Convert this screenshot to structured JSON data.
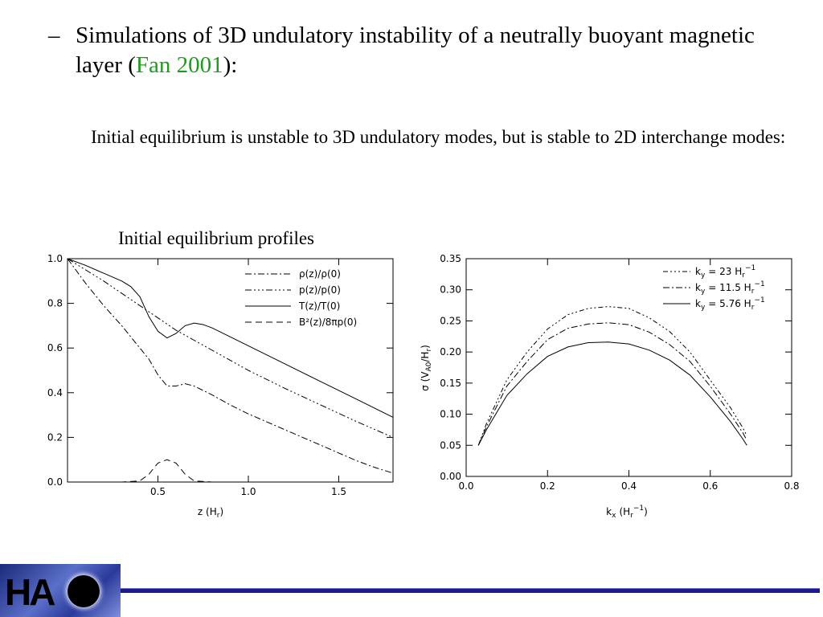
{
  "bullet": {
    "dash": "–",
    "text_before": "Simulations of 3D undulatory instability of a neutrally buoyant magnetic layer (",
    "citation": "Fan 2001",
    "text_after": "):"
  },
  "subtext": "Initial equilibrium is unstable to 3D undulatory modes, but is stable to 2D interchange modes:",
  "profiles_title": "Initial equilibrium profiles",
  "logo_text": "HA",
  "chart_data": [
    {
      "type": "line",
      "xlabel_main": "z",
      "xlabel_unit": "(H",
      "xlabel_sub": "r",
      "xlabel_close": ")",
      "xlim": [
        0,
        1.8
      ],
      "ylim": [
        0,
        1.0
      ],
      "x_ticks": [
        0.5,
        1.0,
        1.5
      ],
      "x_tick_labels": [
        "0.5",
        "1.0",
        "1.5"
      ],
      "y_ticks": [
        0,
        0.2,
        0.4,
        0.6,
        0.8,
        1.0
      ],
      "y_tick_labels": [
        "0.0",
        "0.2",
        "0.4",
        "0.6",
        "0.8",
        "1.0"
      ],
      "legend_position": "top-right",
      "legend_labels": [
        "ρ(z)/ρ(0)",
        "p(z)/p(0)",
        "T(z)/T(0)",
        "B²(z)/8πp(0)"
      ],
      "series": [
        {
          "dash": "8,3,2,3",
          "x": [
            0,
            0.1,
            0.2,
            0.3,
            0.4,
            0.45,
            0.5,
            0.55,
            0.6,
            0.65,
            0.7,
            0.8,
            0.9,
            1.0,
            1.1,
            1.2,
            1.3,
            1.4,
            1.5,
            1.6,
            1.7,
            1.8
          ],
          "y": [
            1.0,
            0.89,
            0.79,
            0.7,
            0.6,
            0.55,
            0.48,
            0.43,
            0.43,
            0.44,
            0.43,
            0.39,
            0.345,
            0.305,
            0.27,
            0.235,
            0.2,
            0.165,
            0.13,
            0.095,
            0.065,
            0.04
          ]
        },
        {
          "dash": "8,3,2,3,2,3,2,3",
          "x": [
            0,
            0.2,
            0.4,
            0.6,
            0.7,
            0.8,
            1.0,
            1.2,
            1.4,
            1.6,
            1.8
          ],
          "y": [
            1.0,
            0.9,
            0.79,
            0.68,
            0.635,
            0.59,
            0.5,
            0.42,
            0.345,
            0.27,
            0.2
          ]
        },
        {
          "dash": "none",
          "x": [
            0,
            0.1,
            0.2,
            0.3,
            0.35,
            0.4,
            0.45,
            0.5,
            0.55,
            0.6,
            0.65,
            0.7,
            0.75,
            0.8,
            1.0,
            1.2,
            1.4,
            1.6,
            1.8
          ],
          "y": [
            1.0,
            0.97,
            0.935,
            0.9,
            0.875,
            0.83,
            0.74,
            0.675,
            0.645,
            0.665,
            0.7,
            0.712,
            0.705,
            0.69,
            0.61,
            0.53,
            0.45,
            0.37,
            0.29
          ]
        },
        {
          "dash": "8,5",
          "x": [
            0,
            0.3,
            0.4,
            0.45,
            0.5,
            0.55,
            0.6,
            0.65,
            0.7,
            0.8,
            1.8
          ],
          "y": [
            0,
            0,
            0.005,
            0.035,
            0.085,
            0.1,
            0.085,
            0.035,
            0.005,
            0,
            0
          ]
        }
      ]
    },
    {
      "type": "line",
      "ylabel_main": "σ",
      "ylabel_unit": "(V",
      "ylabel_sub": "A0",
      "ylabel_slash": "/H",
      "ylabel_sub2": "r",
      "ylabel_close": ")",
      "xlabel_main": "k",
      "xlabel_sub": "x",
      "xlabel_unit": "(H",
      "xlabel_sub2": "r",
      "xlabel_sup": "−1",
      "xlabel_close": ")",
      "xlim": [
        0,
        0.8
      ],
      "ylim": [
        0,
        0.35
      ],
      "x_ticks": [
        0,
        0.2,
        0.4,
        0.6,
        0.8
      ],
      "x_tick_labels": [
        "0.0",
        "0.2",
        "0.4",
        "0.6",
        "0.8"
      ],
      "y_ticks": [
        0,
        0.05,
        0.1,
        0.15,
        0.2,
        0.25,
        0.3,
        0.35
      ],
      "y_tick_labels": [
        "0.00",
        "0.05",
        "0.10",
        "0.15",
        "0.20",
        "0.25",
        "0.30",
        "0.35"
      ],
      "legend_position": "top-right",
      "legend": [
        {
          "k": "k",
          "sub": "y",
          "eq": "= 23 H",
          "sub2": "r",
          "sup": "−1"
        },
        {
          "k": "k",
          "sub": "y",
          "eq": "= 11.5 H",
          "sub2": "r",
          "sup": "−1"
        },
        {
          "k": "k",
          "sub": "y",
          "eq": "= 5.76 H",
          "sub2": "r",
          "sup": "−1"
        }
      ],
      "series": [
        {
          "dash": "6,3,2,3,2,3,2,3",
          "x": [
            0.03,
            0.05,
            0.1,
            0.15,
            0.2,
            0.25,
            0.3,
            0.35,
            0.4,
            0.45,
            0.5,
            0.55,
            0.6,
            0.65,
            0.68,
            0.69
          ],
          "y": [
            0.05,
            0.085,
            0.155,
            0.2,
            0.237,
            0.26,
            0.27,
            0.273,
            0.27,
            0.255,
            0.233,
            0.2,
            0.155,
            0.11,
            0.078,
            0.065
          ]
        },
        {
          "dash": "8,3,2,3",
          "x": [
            0.03,
            0.05,
            0.1,
            0.15,
            0.2,
            0.25,
            0.3,
            0.35,
            0.4,
            0.45,
            0.5,
            0.55,
            0.6,
            0.65,
            0.68,
            0.69
          ],
          "y": [
            0.05,
            0.08,
            0.145,
            0.185,
            0.22,
            0.238,
            0.245,
            0.247,
            0.244,
            0.232,
            0.212,
            0.185,
            0.145,
            0.1,
            0.07,
            0.058
          ]
        },
        {
          "dash": "none",
          "x": [
            0.03,
            0.05,
            0.1,
            0.15,
            0.2,
            0.25,
            0.3,
            0.35,
            0.4,
            0.45,
            0.5,
            0.55,
            0.6,
            0.65,
            0.68,
            0.69
          ],
          "y": [
            0.05,
            0.075,
            0.13,
            0.165,
            0.193,
            0.208,
            0.215,
            0.216,
            0.213,
            0.203,
            0.187,
            0.163,
            0.128,
            0.088,
            0.06,
            0.05
          ]
        }
      ]
    }
  ]
}
